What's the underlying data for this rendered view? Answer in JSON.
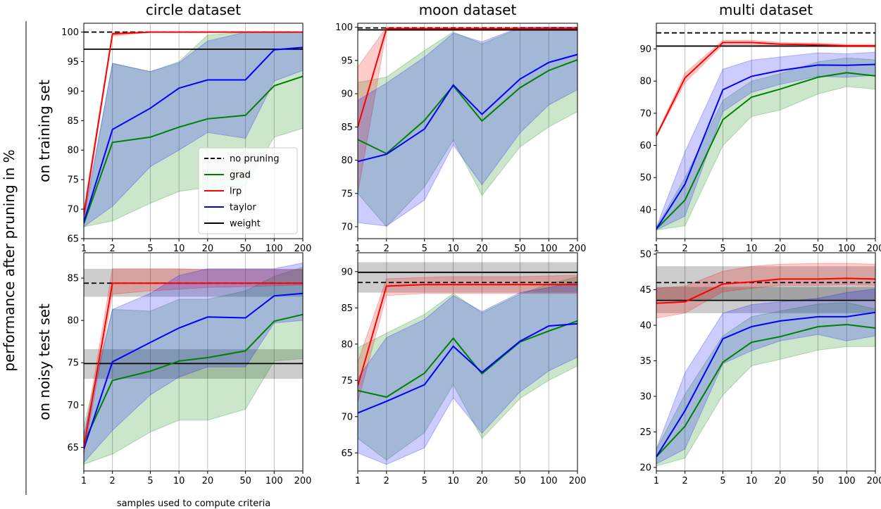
{
  "figure": {
    "ylabel": "performance after pruning in %",
    "xlabel": "samples used to compute criteria",
    "columns": [
      "circle dataset",
      "moon dataset",
      "multi dataset"
    ],
    "rows": [
      "on training set",
      "on noisy test set"
    ]
  },
  "legend": {
    "entries": [
      {
        "label": "no pruning",
        "color": "#000000",
        "dash": true
      },
      {
        "label": "grad",
        "color": "#008000"
      },
      {
        "label": "lrp",
        "color": "#ff0000"
      },
      {
        "label": "taylor",
        "color": "#0000ff"
      },
      {
        "label": "weight",
        "color": "#000000"
      }
    ]
  },
  "colors": {
    "grad": "#008000",
    "lrp": "#ff0000",
    "taylor": "#0000ff",
    "weight": "#000000",
    "no_pruning": "#000000"
  },
  "chart_data": [
    {
      "type": "line",
      "title": "circle dataset",
      "row_label": "on training set",
      "x": [
        1,
        2,
        5,
        10,
        20,
        50,
        100,
        200
      ],
      "xscale": "log",
      "xticks": [
        "1",
        "2",
        "5",
        "10",
        "20",
        "50",
        "100",
        "200"
      ],
      "ylim": [
        65,
        101.5
      ],
      "yticks": [
        65,
        70,
        75,
        80,
        85,
        90,
        95,
        100
      ],
      "hlines": {
        "no pruning": 100,
        "weight": 97.1
      },
      "series": [
        {
          "name": "grad",
          "values": [
            67.5,
            81.3,
            82.2,
            83.9,
            85.3,
            85.9,
            90.9,
            92.5
          ],
          "lower": [
            67,
            68,
            71,
            73,
            73.7,
            74,
            82.2,
            83.7
          ],
          "upper": [
            68,
            94.7,
            93.3,
            95,
            99.5,
            100,
            100,
            100
          ]
        },
        {
          "name": "lrp",
          "values": [
            69,
            99.7,
            100,
            100,
            100,
            100,
            100,
            100
          ],
          "lower": [
            68,
            99.3,
            100,
            100,
            100,
            100,
            100,
            100
          ],
          "upper": [
            70,
            100,
            100,
            100,
            100,
            100,
            100,
            100
          ]
        },
        {
          "name": "taylor",
          "values": [
            67.8,
            83.5,
            87.1,
            90.5,
            91.9,
            91.9,
            97,
            97.4
          ],
          "lower": [
            67,
            70.5,
            77.2,
            80,
            83,
            82,
            91.7,
            93.5
          ],
          "upper": [
            68.5,
            94.7,
            93.3,
            94.8,
            98.5,
            100,
            100,
            100
          ]
        }
      ]
    },
    {
      "type": "line",
      "title": "moon dataset",
      "row_label": "on training set",
      "x": [
        1,
        2,
        5,
        10,
        20,
        50,
        100,
        200
      ],
      "xscale": "log",
      "xticks": [
        "1",
        "2",
        "5",
        "10",
        "20",
        "50",
        "100",
        "200"
      ],
      "ylim": [
        68.2,
        100.6
      ],
      "yticks": [
        70,
        75,
        80,
        85,
        90,
        95,
        100
      ],
      "hlines": {
        "no pruning": 99.9,
        "weight": 99.6
      },
      "series": [
        {
          "name": "grad",
          "values": [
            83.1,
            81,
            86,
            91.2,
            85.9,
            90.9,
            93.5,
            95.1
          ],
          "lower": [
            75,
            70,
            76,
            83,
            74.7,
            82,
            85,
            87.3
          ],
          "upper": [
            91.7,
            92.5,
            96.5,
            99.3,
            97.5,
            99.9,
            100,
            100
          ]
        },
        {
          "name": "lrp",
          "values": [
            85,
            99.8,
            99.8,
            99.8,
            99.8,
            99.8,
            99.8,
            99.8
          ],
          "lower": [
            75,
            99.5,
            99.5,
            99.5,
            99.5,
            99.5,
            99.5,
            99.5
          ],
          "upper": [
            94,
            100,
            100,
            100,
            100,
            100,
            100,
            100
          ]
        },
        {
          "name": "taylor",
          "values": [
            79.8,
            80.9,
            84.7,
            91.3,
            86.9,
            92.2,
            94.7,
            95.9
          ],
          "lower": [
            70.6,
            70.1,
            74,
            82.3,
            76.3,
            84.1,
            88.3,
            90.6
          ],
          "upper": [
            89,
            91.6,
            95.5,
            99.1,
            97.8,
            100,
            100,
            100
          ]
        }
      ]
    },
    {
      "type": "line",
      "title": "multi dataset",
      "row_label": "on training set",
      "x": [
        1,
        2,
        5,
        10,
        20,
        50,
        100,
        200
      ],
      "xscale": "log",
      "xticks": [
        "1",
        "2",
        "5",
        "10",
        "20",
        "50",
        "100",
        "200"
      ],
      "ylim": [
        31,
        98
      ],
      "yticks": [
        40,
        50,
        60,
        70,
        80,
        90
      ],
      "hlines": {
        "no pruning": 95,
        "weight": 90.9
      },
      "series": [
        {
          "name": "grad",
          "values": [
            34,
            43,
            68,
            75,
            77.5,
            81.2,
            82.6,
            81.6
          ],
          "lower": [
            33.7,
            35,
            60,
            69,
            71,
            76,
            78.3,
            77.5
          ],
          "upper": [
            34.5,
            50,
            74,
            80,
            82.3,
            86,
            87.2,
            86.6
          ]
        },
        {
          "name": "lrp",
          "values": [
            63,
            81,
            92,
            92,
            91.5,
            91.3,
            91,
            91
          ],
          "lower": [
            62.7,
            79.5,
            91.3,
            91.3,
            91,
            90.8,
            90.6,
            90.6
          ],
          "upper": [
            63.3,
            82.5,
            92.7,
            92.7,
            92,
            91.8,
            91.4,
            91.4
          ]
        },
        {
          "name": "taylor",
          "values": [
            34,
            48,
            77.3,
            81.5,
            83.3,
            85,
            84.9,
            85.2
          ],
          "lower": [
            33.7,
            38,
            70.5,
            76.5,
            79,
            81.5,
            81.2,
            81.8
          ],
          "upper": [
            34.5,
            58,
            83.7,
            86.5,
            87.5,
            88.8,
            88.5,
            89
          ]
        }
      ]
    },
    {
      "type": "line",
      "title": "circle dataset",
      "row_label": "on noisy test set",
      "x": [
        1,
        2,
        5,
        10,
        20,
        50,
        100,
        200
      ],
      "xscale": "log",
      "xticks": [
        "1",
        "2",
        "5",
        "10",
        "20",
        "50",
        "100",
        "200"
      ],
      "ylim": [
        62.2,
        88
      ],
      "yticks": [
        65,
        70,
        75,
        80,
        85
      ],
      "hlines": {
        "no pruning": 84.4,
        "weight": 74.9
      },
      "hbands": {
        "no pruning": [
          82.8,
          86.1
        ],
        "weight": [
          73.1,
          76.6
        ]
      },
      "series": [
        {
          "name": "grad",
          "values": [
            65.5,
            72.9,
            74,
            75.2,
            75.6,
            76.4,
            79.9,
            80.7
          ],
          "lower": [
            63,
            64.2,
            66.8,
            68.2,
            68.2,
            69.5,
            75.2,
            75.5
          ],
          "upper": [
            67.5,
            81.3,
            81.1,
            82.5,
            82.5,
            83.5,
            85.2,
            86.3
          ]
        },
        {
          "name": "lrp",
          "values": [
            65,
            84.4,
            84.4,
            84.4,
            84.4,
            84.4,
            84.4,
            84.4
          ],
          "lower": [
            64,
            83.1,
            83.5,
            83.7,
            83.9,
            84,
            84.1,
            84.2
          ],
          "upper": [
            66,
            86.1,
            86.1,
            86.1,
            86,
            86,
            86,
            86
          ]
        },
        {
          "name": "taylor",
          "values": [
            64.8,
            75.1,
            77.4,
            79.1,
            80.4,
            80.3,
            82.9,
            83.2
          ],
          "lower": [
            63.2,
            67,
            71.2,
            73.3,
            74.5,
            74.5,
            79.7,
            80
          ],
          "upper": [
            66.5,
            81.3,
            83.2,
            85.3,
            86.1,
            86.1,
            86.1,
            86.8
          ]
        }
      ]
    },
    {
      "type": "line",
      "title": "moon dataset",
      "row_label": "on noisy test set",
      "x": [
        1,
        2,
        5,
        10,
        20,
        50,
        100,
        200
      ],
      "xscale": "log",
      "xticks": [
        "1",
        "2",
        "5",
        "10",
        "20",
        "50",
        "100",
        "200"
      ],
      "ylim": [
        62.5,
        92.6
      ],
      "yticks": [
        65,
        70,
        75,
        80,
        85,
        90
      ],
      "hlines": {
        "no pruning": 88.5,
        "weight": 89.9
      },
      "hbands": {
        "no pruning": [
          87.1,
          91.3
        ]
      },
      "series": [
        {
          "name": "grad",
          "values": [
            73.6,
            72.7,
            76,
            80.8,
            75.9,
            80.3,
            81.8,
            83.2
          ],
          "lower": [
            67,
            64,
            67.8,
            74.4,
            67,
            72.5,
            75,
            77
          ],
          "upper": [
            79.5,
            81.5,
            84.1,
            87,
            84.3,
            86.9,
            88.3,
            89.3
          ]
        },
        {
          "name": "lrp",
          "values": [
            74.2,
            88,
            88.2,
            88.2,
            88.2,
            88.2,
            88.2,
            88.2
          ],
          "lower": [
            72,
            86.7,
            87,
            87,
            87,
            87,
            87,
            87
          ],
          "upper": [
            77.5,
            89,
            89.2,
            89.3,
            89.3,
            89.3,
            89.4,
            89.5
          ]
        },
        {
          "name": "taylor",
          "values": [
            70.5,
            72.1,
            74.4,
            79.7,
            76.1,
            80.4,
            82.5,
            82.8
          ],
          "lower": [
            65,
            63.4,
            65.7,
            72.6,
            67.7,
            73.4,
            76.3,
            78.2
          ],
          "upper": [
            75.3,
            80.9,
            83.4,
            86.7,
            84.5,
            87.1,
            87.8,
            88.6
          ]
        }
      ]
    },
    {
      "type": "line",
      "title": "multi dataset",
      "row_label": "on noisy test set",
      "x": [
        1,
        2,
        5,
        10,
        20,
        50,
        100,
        200
      ],
      "xscale": "log",
      "xticks": [
        "1",
        "2",
        "5",
        "10",
        "20",
        "50",
        "100",
        "200"
      ],
      "ylim": [
        19.5,
        50.2
      ],
      "yticks": [
        20,
        25,
        30,
        35,
        40,
        45,
        50
      ],
      "hlines": {
        "no pruning": 46,
        "weight": 43.5
      },
      "hbands": {
        "no pruning": [
          43.6,
          48.3
        ],
        "weight": [
          41.7,
          45.4
        ]
      },
      "series": [
        {
          "name": "grad",
          "values": [
            21.5,
            25.8,
            34.8,
            37.6,
            38.4,
            39.8,
            40.1,
            39.6
          ],
          "lower": [
            20.2,
            21.3,
            30.2,
            34.3,
            35.2,
            36.5,
            37,
            37
          ],
          "upper": [
            22.5,
            30.3,
            38.5,
            41.2,
            42,
            43,
            43.2,
            42.3
          ]
        },
        {
          "name": "lrp",
          "values": [
            43.1,
            43.3,
            45.8,
            46.1,
            46.5,
            46.5,
            46.6,
            46.5
          ],
          "lower": [
            41,
            41.7,
            44.7,
            45.2,
            45.6,
            45.6,
            45.7,
            45.6
          ],
          "upper": [
            45.2,
            45.5,
            47.6,
            48.3,
            48.6,
            48.7,
            48.7,
            48.6
          ]
        },
        {
          "name": "taylor",
          "values": [
            21.5,
            28,
            38.1,
            39.8,
            40.6,
            41.2,
            41.2,
            41.8
          ],
          "lower": [
            20.5,
            22.6,
            34.6,
            36.4,
            37.8,
            38.7,
            37.8,
            38.5
          ],
          "upper": [
            22.6,
            33.3,
            41.7,
            42.9,
            43.3,
            43.8,
            44.6,
            45.1
          ]
        }
      ]
    }
  ]
}
